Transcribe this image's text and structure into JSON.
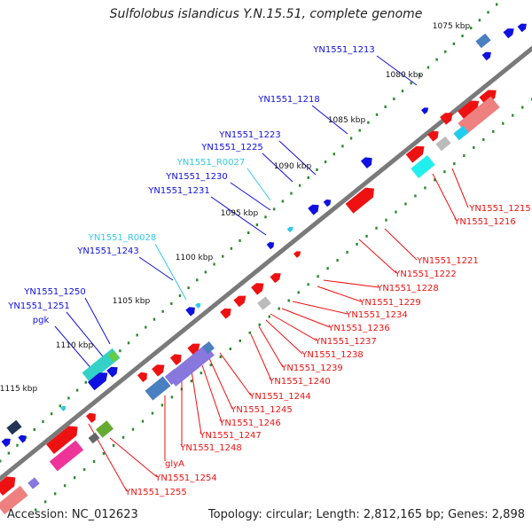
{
  "title": "Sulfolobus islandicus Y.N.15.51, complete genome",
  "accession": "Accession: NC_012623",
  "summary": "Topology: circular; Length: 2,812,165 bp; Genes: 2,898",
  "colors": {
    "plus_strand": "#1010e0",
    "minus_strand": "#ee1111",
    "rna": "#33c8e8",
    "backbone": "#7a7a7a",
    "ticks": "#2a8a2a"
  },
  "scale_labels": [
    "1075 kbp",
    "1080 kbp",
    "1085 kbp",
    "1090 kbp",
    "1095 kbp",
    "1100 kbp",
    "1105 kbp",
    "1110 kbp",
    "1115 kbp"
  ],
  "plus_labels": [
    "YN1551_1213",
    "YN1551_1218",
    "YN1551_1223",
    "YN1551_1225",
    "YN1551_R0027",
    "YN1551_1230",
    "YN1551_1231",
    "YN1551_R0028",
    "YN1551_1243",
    "YN1551_1250",
    "YN1551_1251",
    "pgk"
  ],
  "minus_labels": [
    "YN1551_1215",
    "YN1551_1216",
    "YN1551_1221",
    "YN1551_1222",
    "YN1551_1228",
    "YN1551_1229",
    "YN1551_1234",
    "YN1551_1236",
    "YN1551_1237",
    "YN1551_1238",
    "YN1551_1239",
    "YN1551_1240",
    "YN1551_1244",
    "YN1551_1245",
    "YN1551_1246",
    "YN1551_1247",
    "YN1551_1248",
    "glyA",
    "YN1551_1254",
    "YN1551_1255"
  ]
}
